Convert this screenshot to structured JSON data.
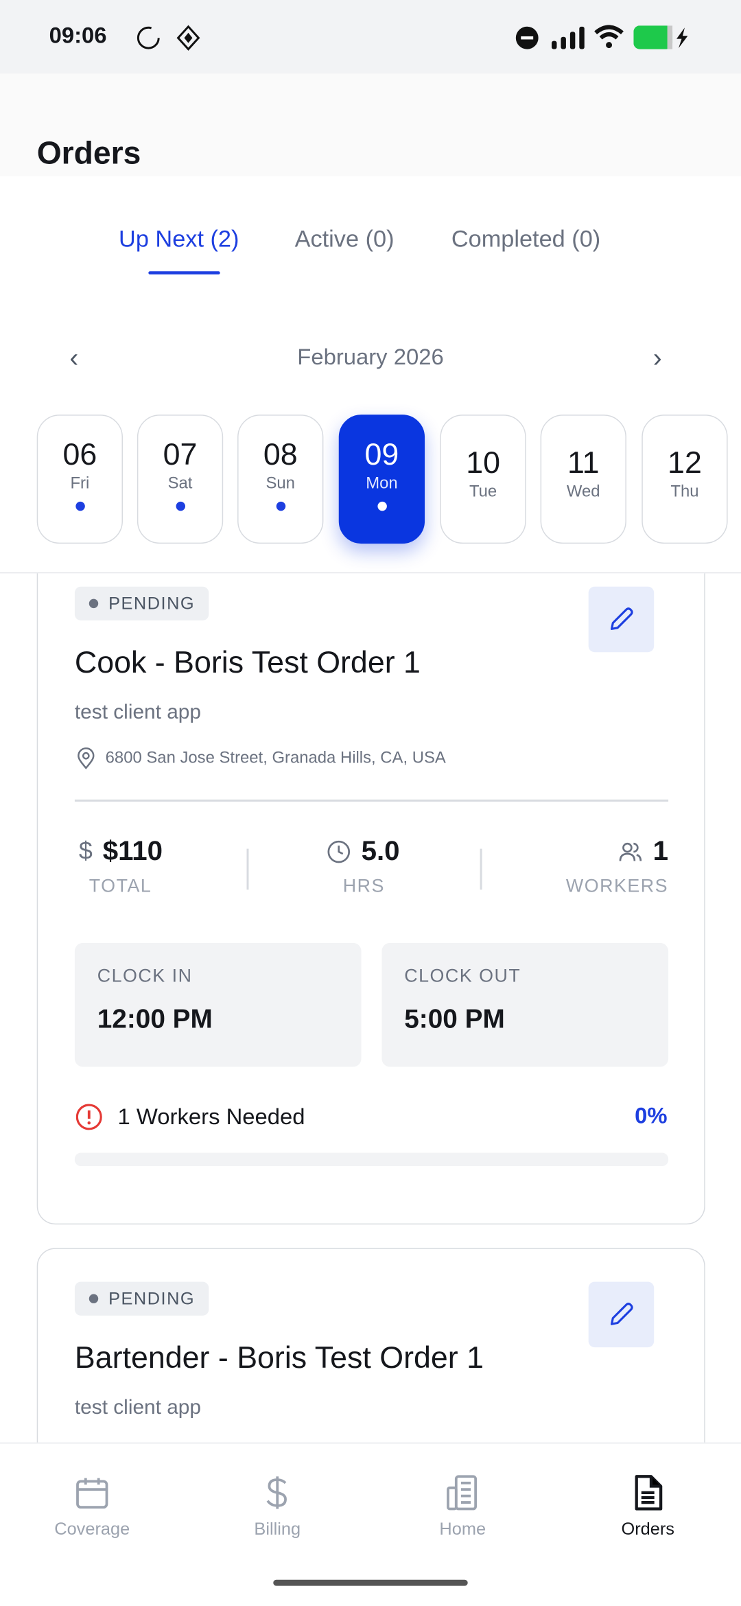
{
  "status_bar": {
    "time": "09:06"
  },
  "page": {
    "title": "Orders"
  },
  "tabs": [
    {
      "label": "Up Next (2)",
      "active": true
    },
    {
      "label": "Active (0)"
    },
    {
      "label": "Completed (0)"
    }
  ],
  "calendar": {
    "month": "February 2026",
    "days": [
      {
        "num": "06",
        "dow": "Fri",
        "dot": true
      },
      {
        "num": "07",
        "dow": "Sat",
        "dot": true
      },
      {
        "num": "08",
        "dow": "Sun",
        "dot": true
      },
      {
        "num": "09",
        "dow": "Mon",
        "dot": true,
        "selected": true
      },
      {
        "num": "10",
        "dow": "Tue",
        "dot": false
      },
      {
        "num": "11",
        "dow": "Wed",
        "dot": false
      },
      {
        "num": "12",
        "dow": "Thu",
        "dot": false
      }
    ]
  },
  "orders": [
    {
      "status": "PENDING",
      "title": "Cook - Boris Test Order 1",
      "client": "test client app",
      "address": "6800 San Jose Street, Granada Hills, CA, USA",
      "total": "$110",
      "total_label": "TOTAL",
      "hours": "5.0",
      "hours_label": "HRS",
      "workers": "1",
      "workers_label": "WORKERS",
      "clock_in_label": "CLOCK IN",
      "clock_in": "12:00 PM",
      "clock_out_label": "CLOCK OUT",
      "clock_out": "5:00 PM",
      "needed": "1 Workers Needed",
      "fill_percent": "0%",
      "fill": 0
    },
    {
      "status": "PENDING",
      "title": "Bartender - Boris Test Order 1",
      "client": "test client app"
    }
  ],
  "bottom_nav": [
    {
      "label": "Coverage",
      "icon": "calendar-icon"
    },
    {
      "label": "Billing",
      "icon": "dollar-icon"
    },
    {
      "label": "Home",
      "icon": "building-icon"
    },
    {
      "label": "Orders",
      "icon": "document-icon",
      "active": true
    }
  ],
  "colors": {
    "accent": "#1d3fe0",
    "selected_day": "#0a36e0",
    "alert": "#e53935",
    "battery": "#1ec94b"
  }
}
